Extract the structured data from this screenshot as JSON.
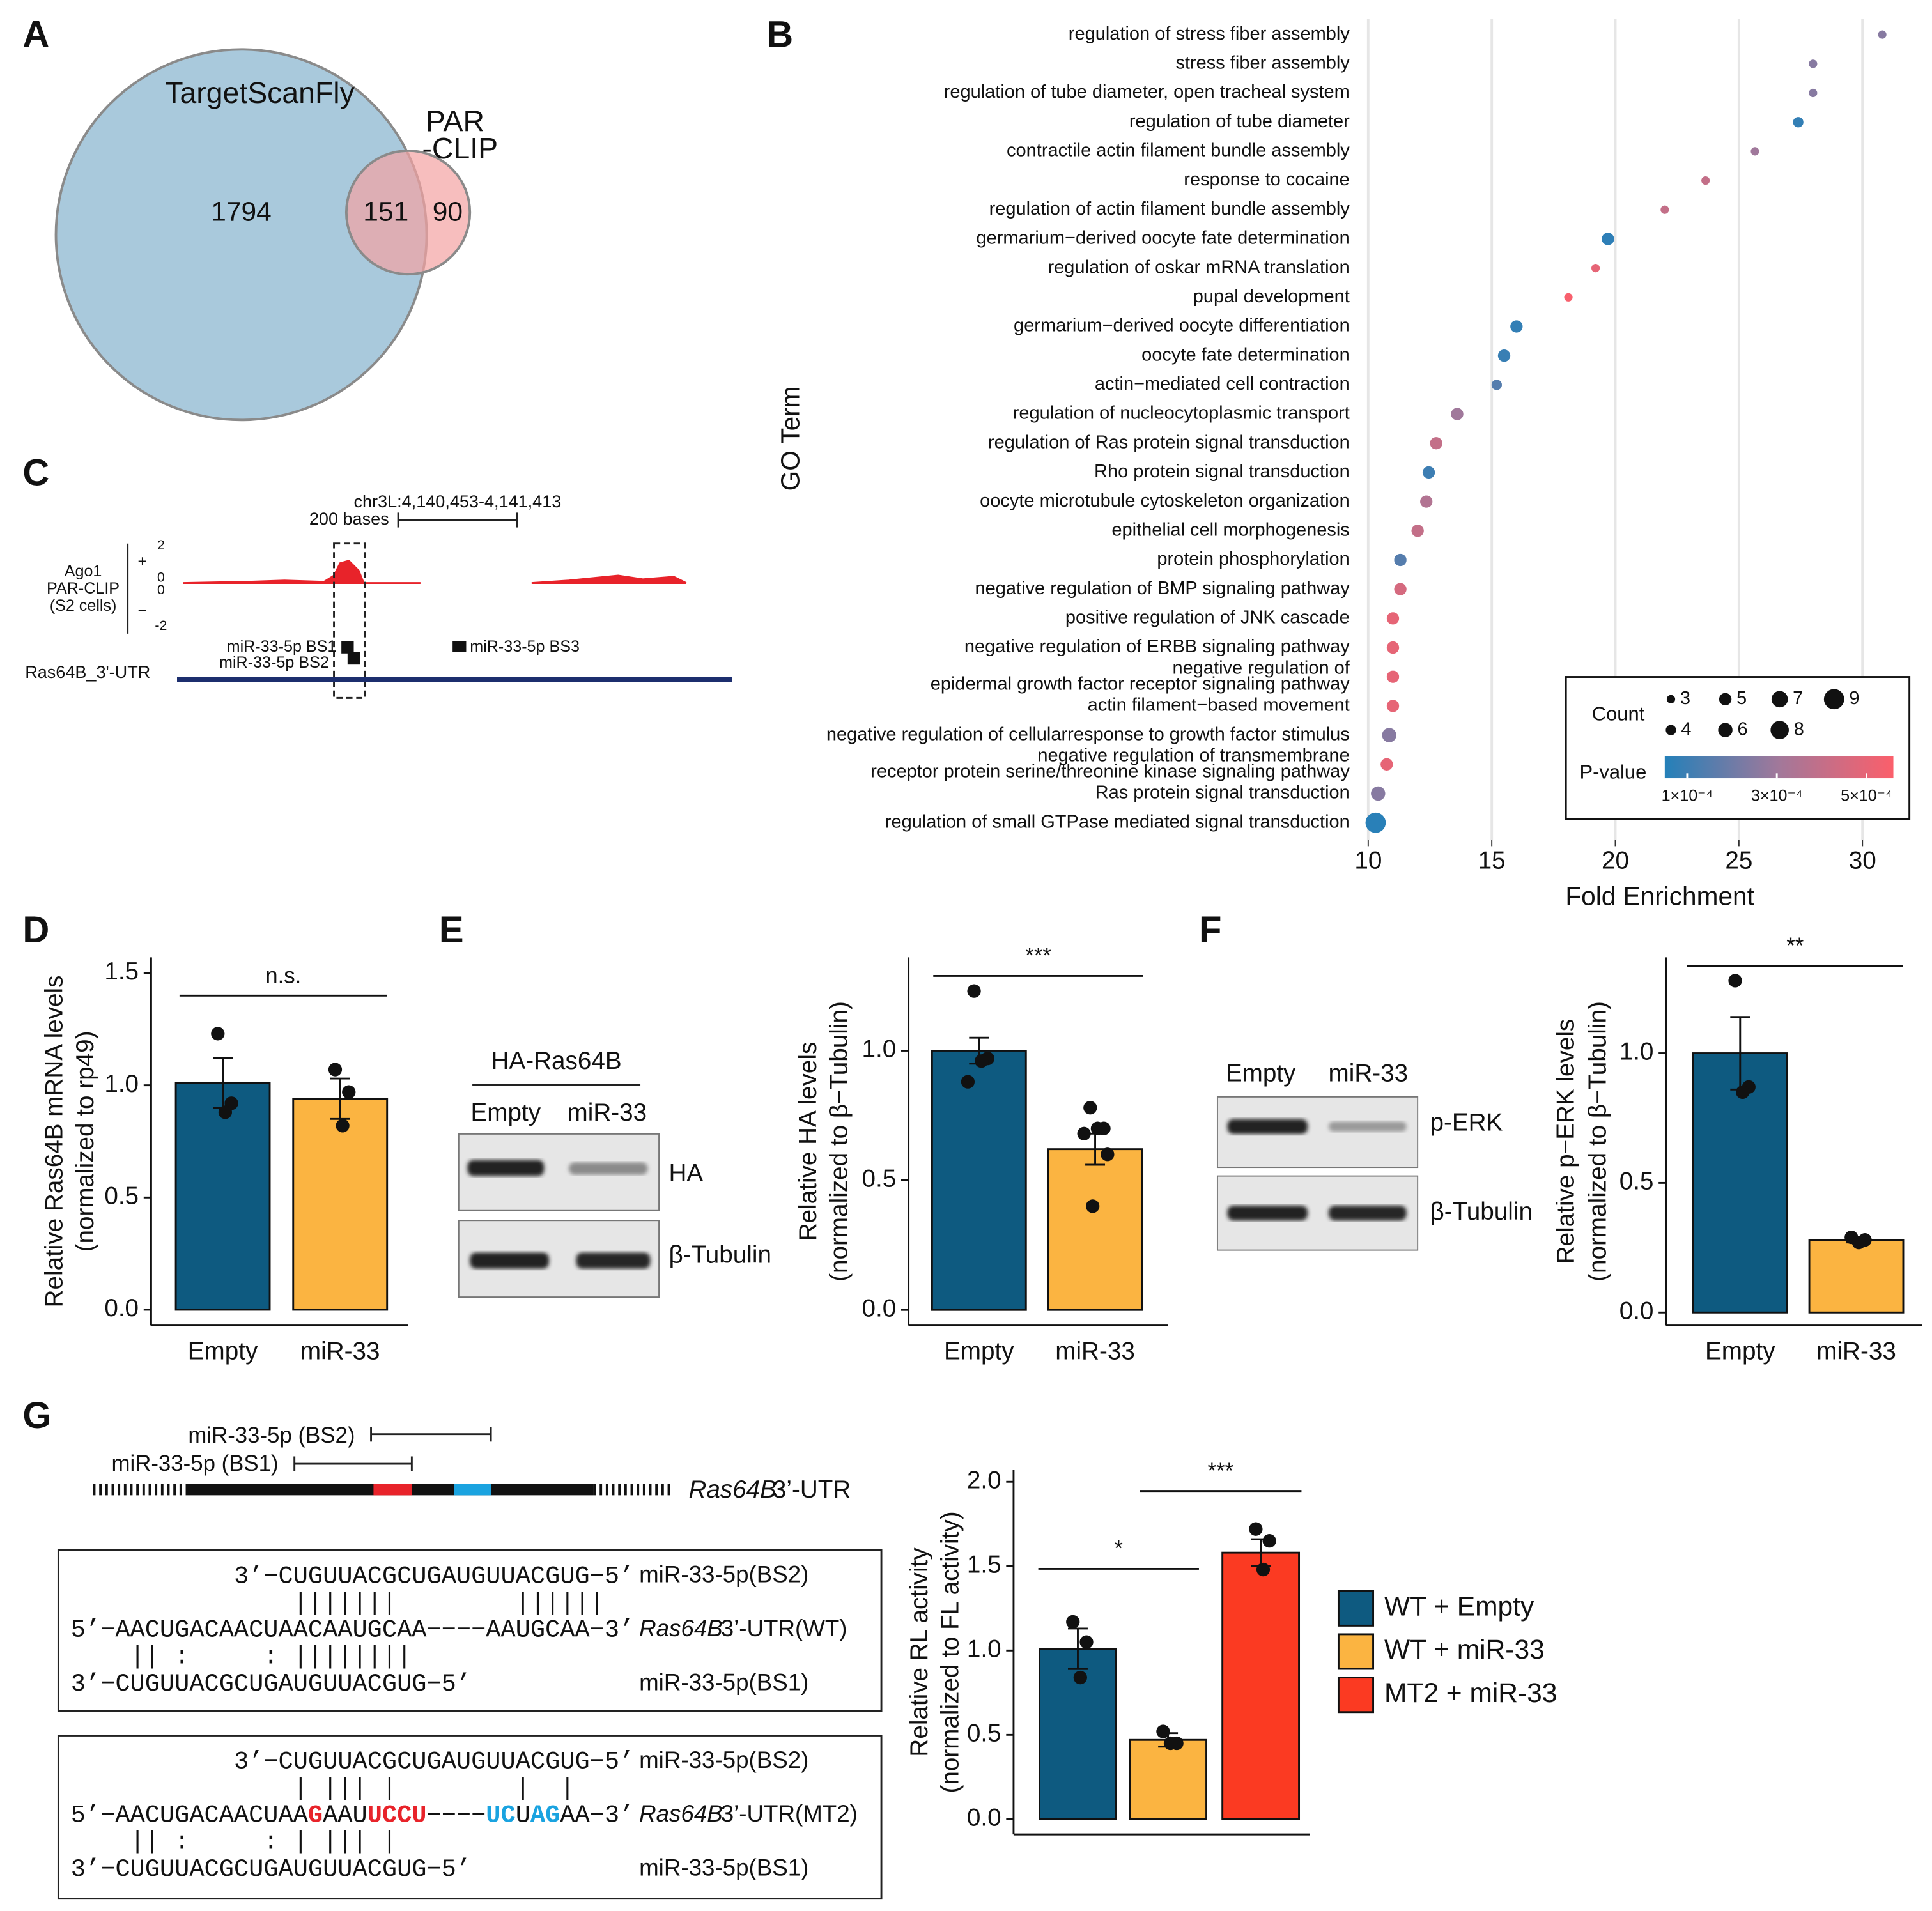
{
  "panel_labels": [
    "A",
    "B",
    "C",
    "D",
    "E",
    "F",
    "G"
  ],
  "chart_data": [
    {
      "type": "venn",
      "sets": [
        {
          "name": "TargetScanFly",
          "color": "#a9c9dc"
        },
        {
          "name": [
            "PAR",
            "-CLIP"
          ],
          "color": "#f4a3a3"
        }
      ],
      "values": [
        1794,
        151,
        90
      ]
    },
    {
      "type": "scatter",
      "categories": [
        "regulation of stress fiber assembly",
        "stress fiber assembly",
        "regulation of tube diameter, open tracheal system",
        "regulation of tube diameter",
        "contractile actin filament bundle assembly",
        "response to cocaine",
        "regulation of actin filament bundle assembly",
        "germarium−derived oocyte fate determination",
        "regulation of oskar mRNA translation",
        "pupal development",
        "germarium−derived oocyte differentiation",
        "oocyte fate determination",
        "actin−mediated cell contraction",
        "regulation of nucleocytoplasmic transport",
        "regulation of Ras protein signal transduction",
        "Rho protein signal transduction",
        "oocyte microtubule cytoskeleton organization",
        "epithelial cell morphogenesis",
        "protein phosphorylation",
        "negative regulation of BMP signaling pathway",
        "positive regulation of JNK cascade",
        "negative regulation of ERBB signaling pathway",
        [
          "negative regulation of",
          "epidermal growth factor receptor signaling pathway"
        ],
        "actin filament−based movement",
        "negative regulation of cellularresponse to growth factor stimulus",
        [
          "negative regulation of transmembrane",
          "receptor protein serine/threonine kinase signaling pathway"
        ],
        "Ras protein signal transduction",
        "regulation of small GTPase mediated signal transduction"
      ],
      "values": [
        30.8,
        28.0,
        28.0,
        27.4,
        25.65,
        23.65,
        22.0,
        19.7,
        19.2,
        18.1,
        16.0,
        15.5,
        15.2,
        13.6,
        12.75,
        12.45,
        12.35,
        12.0,
        11.3,
        11.3,
        11.0,
        11.0,
        11.0,
        11.0,
        10.85,
        10.75,
        10.4,
        10.3
      ],
      "sizes": [
        3,
        3,
        3,
        4,
        3,
        3,
        3,
        5,
        3,
        3,
        5,
        5,
        4,
        5,
        5,
        5,
        5,
        5,
        5,
        5,
        5,
        5,
        5,
        5,
        6,
        5,
        6,
        9
      ],
      "pvalues": [
        0.00025,
        0.00025,
        0.00025,
        8e-05,
        0.0003,
        0.0004,
        0.0004,
        7e-05,
        0.0005,
        0.00055,
        8e-05,
        9e-05,
        0.00015,
        0.0003,
        0.0004,
        0.0001,
        0.00035,
        0.0004,
        0.00015,
        0.00045,
        0.0005,
        0.0005,
        0.0005,
        0.0005,
        0.00025,
        0.0005,
        0.00025,
        6e-05
      ],
      "xlim": [
        9.5,
        31.9
      ],
      "xticks": [
        10,
        15,
        20,
        25,
        30
      ],
      "grid": true,
      "xlabel": "Fold Enrichment",
      "ylabel": "GO Term",
      "size_legend": {
        "title": "Count",
        "values": [
          3,
          4,
          5,
          6,
          7,
          8,
          9
        ]
      },
      "color_legend": {
        "title": "P-value",
        "lim": [
          5e-05,
          0.00056
        ],
        "colors": [
          "#2480b9",
          "#a2789a",
          "#fb5f6b"
        ],
        "ticks": [
          {
            "value": 0.0001,
            "label": "1×10⁻⁴"
          },
          {
            "value": 0.0003,
            "label": "3×10⁻⁴"
          },
          {
            "value": 0.0005,
            "label": "5×10⁻⁴"
          }
        ]
      }
    },
    {
      "type": "bar",
      "categories": [
        "Empty",
        "miR-33"
      ],
      "values": [
        1.01,
        0.94
      ],
      "errors": [
        0.11,
        0.09
      ],
      "points": [
        [
          1.23,
          0.92,
          0.88
        ],
        [
          1.07,
          0.97,
          0.82
        ]
      ],
      "colors": [
        "#0e5a80",
        "#fbb441"
      ],
      "ylabel": [
        "Relative Ras64B mRNA levels",
        "(normalized to rp49)"
      ],
      "ylim": [
        -0.07,
        1.57
      ],
      "yticks": [
        {
          "value": 0,
          "label": "0.0"
        },
        {
          "value": 0.5,
          "label": "0.5"
        },
        {
          "value": 1,
          "label": "1.0"
        },
        {
          "value": 1.5,
          "label": "1.5"
        }
      ],
      "annotations": [
        "n.s."
      ]
    },
    {
      "type": "bar",
      "categories": [
        "Empty",
        "miR-33"
      ],
      "values": [
        1.0,
        0.62
      ],
      "errors": [
        0.05,
        0.06
      ],
      "points": [
        [
          1.23,
          0.97,
          0.96,
          0.88
        ],
        [
          0.78,
          0.7,
          0.7,
          0.68,
          0.6,
          0.4
        ]
      ],
      "colors": [
        "#0e5a80",
        "#fbb441"
      ],
      "ylabel": [
        "Relative HA levels",
        "(normalized to β−Tubulin)"
      ],
      "ylim": [
        -0.06,
        1.36
      ],
      "yticks": [
        {
          "value": 0,
          "label": "0.0"
        },
        {
          "value": 0.5,
          "label": "0.5"
        },
        {
          "value": 1,
          "label": "1.0"
        }
      ],
      "annotations": [
        "***"
      ]
    },
    {
      "type": "bar",
      "categories": [
        "Empty",
        "miR-33"
      ],
      "values": [
        1.0,
        0.28
      ],
      "errors": [
        0.14,
        0.01
      ],
      "points": [
        [
          1.28,
          0.87,
          0.85
        ],
        [
          0.29,
          0.28,
          0.27
        ]
      ],
      "colors": [
        "#0e5a80",
        "#fbb441"
      ],
      "ylabel": [
        "Relative p−ERK levels",
        "(normalized to β−Tubulin)"
      ],
      "ylim": [
        -0.05,
        1.37
      ],
      "yticks": [
        {
          "value": 0,
          "label": "0.0"
        },
        {
          "value": 0.5,
          "label": "0.5"
        },
        {
          "value": 1,
          "label": "1.0"
        }
      ],
      "annotations": [
        "**"
      ]
    },
    {
      "type": "bar",
      "categories": [
        null,
        null,
        null
      ],
      "series": [
        {
          "name": "WT + Empty",
          "color": "#0e5a80",
          "values": [
            1.01,
            null,
            null
          ],
          "errors": [
            0.12,
            null,
            null
          ],
          "points": [
            [
              1.17,
              1.05,
              0.84
            ],
            null,
            null
          ]
        },
        {
          "name": "WT + miR-33",
          "color": "#fbb441",
          "values": [
            null,
            0.47,
            null
          ],
          "errors": [
            null,
            0.04,
            null
          ],
          "points": [
            null,
            [
              0.52,
              0.45,
              0.45
            ],
            null
          ]
        },
        {
          "name": "MT2 + miR-33",
          "color": "#fb3a22",
          "values": [
            null,
            null,
            1.58
          ],
          "errors": [
            null,
            null,
            0.08
          ],
          "points": [
            null,
            null,
            [
              1.72,
              1.65,
              1.48
            ]
          ]
        }
      ],
      "ylabel": [
        "Relative RL activity",
        "(normalized to FL activity)"
      ],
      "ylim": [
        -0.09,
        2.07
      ],
      "yticks": [
        {
          "value": 0,
          "label": "0.0"
        },
        {
          "value": 0.5,
          "label": "0.5"
        },
        {
          "value": 1,
          "label": "1.0"
        },
        {
          "value": 1.5,
          "label": "1.5"
        },
        {
          "value": 2,
          "label": "2.0"
        }
      ],
      "annotations": [
        "*",
        "***"
      ]
    }
  ],
  "genome_track": {
    "coords": "chr3L:4,140,453-4,141,413",
    "scale": "200 bases",
    "track": [
      "Ago1",
      "PAR-CLIP",
      "(S2 cells)"
    ],
    "strands": [
      "+",
      "−"
    ],
    "ticks": [
      "2",
      "0",
      "0",
      "-2"
    ],
    "sites": [
      "miR-33-5p BS1",
      "miR-33-5p BS2",
      "miR-33-5p BS3"
    ],
    "gene": "Ras64B_3'-UTR"
  },
  "blot_E": {
    "construct": "HA-Ras64B",
    "lanes": [
      "Empty",
      "miR-33"
    ],
    "bands": [
      "HA",
      "β-Tubulin"
    ]
  },
  "blot_F": {
    "lanes": [
      "Empty",
      "miR-33"
    ],
    "bands": [
      "p-ERK",
      "β-Tubulin"
    ]
  },
  "utr_schematic": {
    "sites": [
      "miR-33-5p (BS2)",
      "miR-33-5p (BS1)"
    ],
    "gene": "Ras64B",
    "region": "3’-UTR"
  },
  "alignments": [
    {
      "mirna_top": "3’−CUGUUACGCUGAUGUUACGUG−5’",
      "pairs_top": "               |||||||        ||||||",
      "utr": [
        {
          "text": "5’−AACUGACAACUAACAAUGCAA−−−−AAUGCAA−3’"
        }
      ],
      "pairs_bottom": "    || :     : ||||||||",
      "mirna_bottom": "3’−CUGUUACGCUGAUGUUACGUG−5’",
      "label_top": "miR-33-5p(BS2)",
      "label_gene": "Ras64B",
      "label_utr": "3’-UTR(WT)",
      "label_bottom": "miR-33-5p(BS1)"
    },
    {
      "mirna_top": "3’−CUGUUACGCUGAUGUUACGUG−5’",
      "pairs_top": "               | ||| |        |  |",
      "utr": [
        {
          "text": "5’−AACUGACAACUAA"
        },
        {
          "text": "G",
          "color": "#e8232a"
        },
        {
          "text": "AAU"
        },
        {
          "text": "UCCU",
          "color": "#e8232a"
        },
        {
          "text": "−−−−"
        },
        {
          "text": "UC",
          "color": "#1aa3e0"
        },
        {
          "text": "U"
        },
        {
          "text": "AG",
          "color": "#1aa3e0"
        },
        {
          "text": "AA−3’"
        }
      ],
      "pairs_bottom": "    || :     : | ||| |",
      "mirna_bottom": "3’−CUGUUACGCUGAUGUUACGUG−5’",
      "label_top": "miR-33-5p(BS2)",
      "label_gene": "Ras64B",
      "label_utr": "3’-UTR(MT2)",
      "label_bottom": "miR-33-5p(BS1)"
    }
  ]
}
